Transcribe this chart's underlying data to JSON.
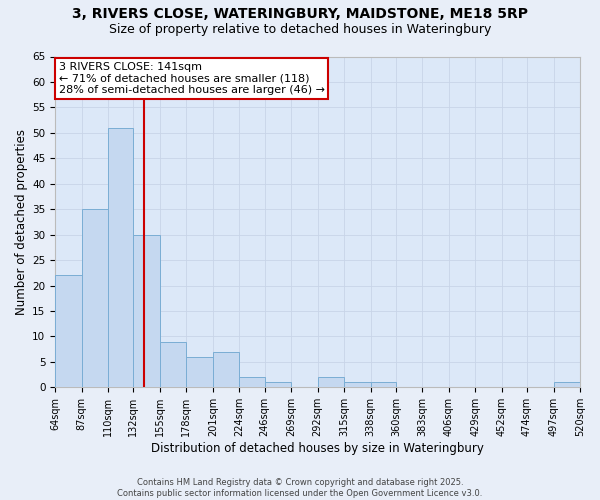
{
  "title1": "3, RIVERS CLOSE, WATERINGBURY, MAIDSTONE, ME18 5RP",
  "title2": "Size of property relative to detached houses in Wateringbury",
  "xlabel": "Distribution of detached houses by size in Wateringbury",
  "ylabel": "Number of detached properties",
  "bar_edges": [
    64,
    87,
    110,
    132,
    155,
    178,
    201,
    224,
    246,
    269,
    292,
    315,
    338,
    360,
    383,
    406,
    429,
    452,
    474,
    497,
    520
  ],
  "bar_heights": [
    22,
    35,
    51,
    30,
    9,
    6,
    7,
    2,
    1,
    0,
    2,
    1,
    1,
    0,
    0,
    0,
    0,
    0,
    0,
    1
  ],
  "bar_color": "#c5d8f0",
  "bar_edgecolor": "#7aadd4",
  "reference_line_x": 141,
  "annotation_text": "3 RIVERS CLOSE: 141sqm\n← 71% of detached houses are smaller (118)\n28% of semi-detached houses are larger (46) →",
  "annotation_box_color": "#ffffff",
  "annotation_box_edgecolor": "#cc0000",
  "reference_line_color": "#cc0000",
  "grid_color": "#c8d4e8",
  "background_color": "#dce8f8",
  "fig_background_color": "#e8eef8",
  "ylim": [
    0,
    65
  ],
  "yticks": [
    0,
    5,
    10,
    15,
    20,
    25,
    30,
    35,
    40,
    45,
    50,
    55,
    60,
    65
  ],
  "tick_labels": [
    "64sqm",
    "87sqm",
    "110sqm",
    "132sqm",
    "155sqm",
    "178sqm",
    "201sqm",
    "224sqm",
    "246sqm",
    "269sqm",
    "292sqm",
    "315sqm",
    "338sqm",
    "360sqm",
    "383sqm",
    "406sqm",
    "429sqm",
    "452sqm",
    "474sqm",
    "497sqm",
    "520sqm"
  ],
  "footer": "Contains HM Land Registry data © Crown copyright and database right 2025.\nContains public sector information licensed under the Open Government Licence v3.0.",
  "title_fontsize": 10,
  "subtitle_fontsize": 9,
  "axis_label_fontsize": 8.5,
  "tick_fontsize": 7,
  "annotation_fontsize": 8,
  "footer_fontsize": 6
}
